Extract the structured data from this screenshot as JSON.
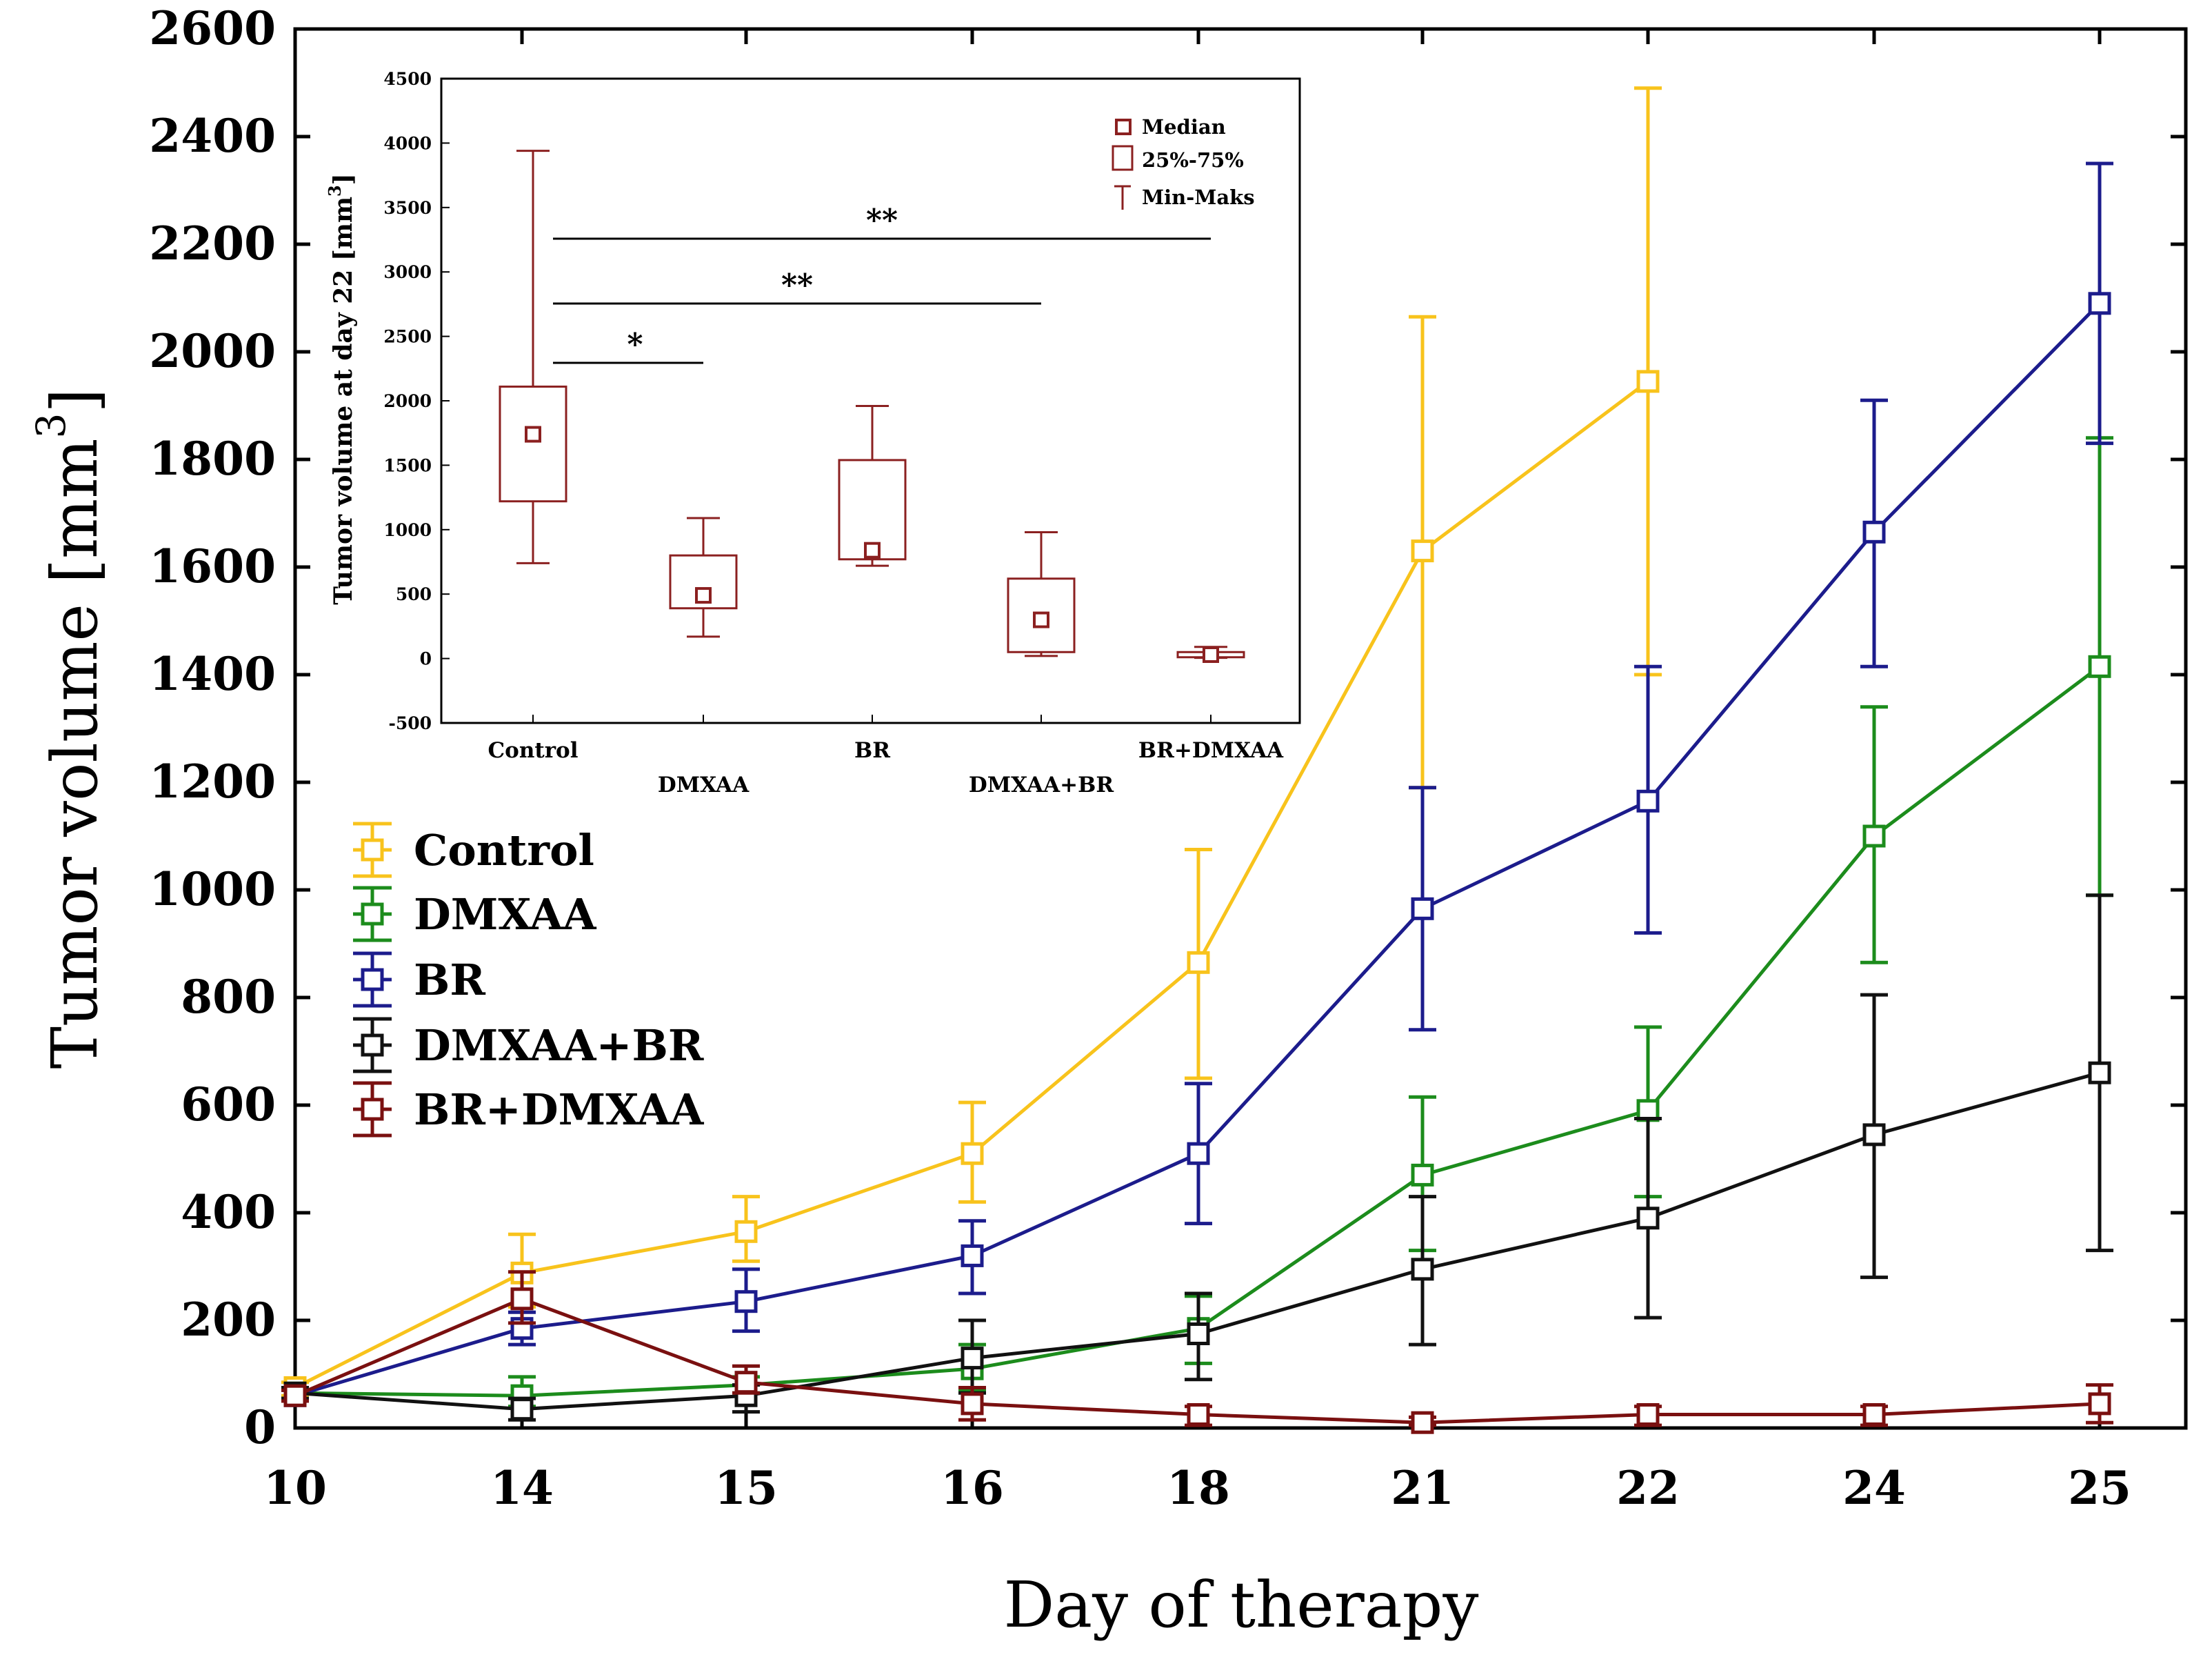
{
  "chart_data": [
    {
      "type": "line",
      "xlabel": "Day of therapy",
      "ylabel": "Tumor volume [mm",
      "ylabel_superscript": "3",
      "ylabel_close": "]",
      "categories": [
        "10",
        "14",
        "15",
        "16",
        "18",
        "21",
        "22",
        "24",
        "25"
      ],
      "ylim": [
        0,
        2600
      ],
      "yticks": [
        0,
        200,
        400,
        600,
        800,
        1000,
        1200,
        1400,
        1600,
        1800,
        2000,
        2200,
        2400,
        2600
      ],
      "legend_position": "left-middle",
      "series": [
        {
          "name": "Control",
          "color": "#F8C31C",
          "values": [
            75,
            288,
            365,
            510,
            865,
            1630,
            1945,
            null,
            null
          ],
          "err_low": [
            60,
            225,
            310,
            420,
            650,
            1190,
            1400,
            null,
            null
          ],
          "err_high": [
            85,
            360,
            430,
            605,
            1075,
            2065,
            2490,
            null,
            null
          ]
        },
        {
          "name": "DMXAA",
          "color": "#1C8C1C",
          "values": [
            65,
            60,
            80,
            110,
            185,
            470,
            590,
            1100,
            1415
          ],
          "err_low": [
            55,
            40,
            65,
            70,
            120,
            330,
            430,
            865,
            990
          ],
          "err_high": [
            75,
            95,
            95,
            155,
            245,
            615,
            745,
            1340,
            1840
          ]
        },
        {
          "name": "BR",
          "color": "#1C1C8C",
          "values": [
            60,
            185,
            235,
            320,
            510,
            965,
            1165,
            1665,
            2090
          ],
          "err_low": [
            50,
            155,
            180,
            250,
            380,
            740,
            920,
            1415,
            1830
          ],
          "err_high": [
            70,
            215,
            295,
            385,
            640,
            1190,
            1415,
            1910,
            2350
          ]
        },
        {
          "name": "DMXAA+BR",
          "color": "#111111",
          "values": [
            65,
            35,
            60,
            130,
            175,
            295,
            390,
            545,
            660
          ],
          "err_low": [
            55,
            15,
            30,
            65,
            90,
            155,
            205,
            280,
            330
          ],
          "err_high": [
            75,
            55,
            80,
            200,
            250,
            430,
            575,
            805,
            990
          ]
        },
        {
          "name": "BR+DMXAA",
          "color": "#7A1010",
          "values": [
            60,
            240,
            85,
            45,
            25,
            10,
            25,
            25,
            45
          ],
          "err_low": [
            50,
            195,
            65,
            15,
            5,
            5,
            5,
            5,
            10
          ],
          "err_high": [
            70,
            290,
            115,
            75,
            40,
            20,
            40,
            40,
            80
          ]
        }
      ]
    },
    {
      "type": "box",
      "ylabel": "Tumor volume at day 22 [mm",
      "ylabel_superscript": "3",
      "ylabel_close": "]",
      "ylim": [
        -500,
        4500
      ],
      "yticks": [
        -500,
        0,
        500,
        1000,
        1500,
        2000,
        2500,
        3000,
        3500,
        4000,
        4500
      ],
      "categories": [
        "Control",
        "DMXAA",
        "BR",
        "DMXAA+BR",
        "BR+DMXAA"
      ],
      "color": "#8B2020",
      "boxes": [
        {
          "median": 1740,
          "q1": 1220,
          "q3": 2110,
          "min": 740,
          "max": 3940
        },
        {
          "median": 490,
          "q1": 390,
          "q3": 800,
          "min": 170,
          "max": 1090
        },
        {
          "median": 840,
          "q1": 770,
          "q3": 1540,
          "min": 720,
          "max": 1960
        },
        {
          "median": 300,
          "q1": 50,
          "q3": 620,
          "min": 20,
          "max": 980
        },
        {
          "median": 30,
          "q1": 10,
          "q3": 50,
          "min": 5,
          "max": 90
        }
      ],
      "legend": {
        "median": "Median",
        "box": "25%-75%",
        "whisker": "Min-Maks"
      },
      "significance": [
        {
          "from": 0,
          "to": 1,
          "label": "*"
        },
        {
          "from": 0,
          "to": 3,
          "label": "**"
        },
        {
          "from": 0,
          "to": 4,
          "label": "**"
        }
      ]
    }
  ]
}
